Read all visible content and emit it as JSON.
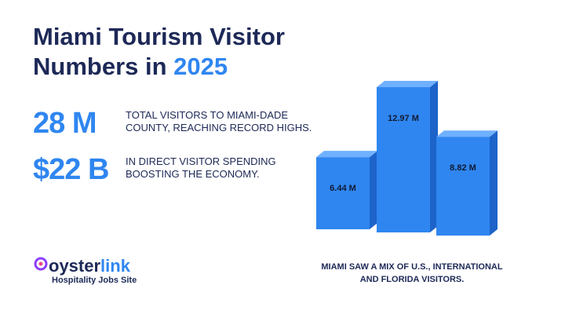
{
  "header": {
    "title_main": "Miami Tourism Visitor Numbers in",
    "title_highlight": "2025"
  },
  "stats": [
    {
      "figure": "28 M",
      "text": "TOTAL VISITORS TO MIAMI-DADE COUNTY, REACHING RECORD HIGHS."
    },
    {
      "figure": "$22 B",
      "text": "IN DIRECT VISITOR SPENDING BOOSTING THE ECONOMY."
    }
  ],
  "logo": {
    "name_dark": "oyster",
    "name_blue": "link",
    "tagline": "Hospitality Jobs Site"
  },
  "caption": "MIAMI SAW A MIX OF U.S., INTERNATIONAL AND FLORIDA VISITORS.",
  "chart_data": {
    "type": "bar3d",
    "values": [
      6.44,
      12.97,
      8.82
    ],
    "value_labels": [
      "6.44 M",
      "12.97 M",
      "8.82 M"
    ],
    "color": "#2f86f0"
  }
}
